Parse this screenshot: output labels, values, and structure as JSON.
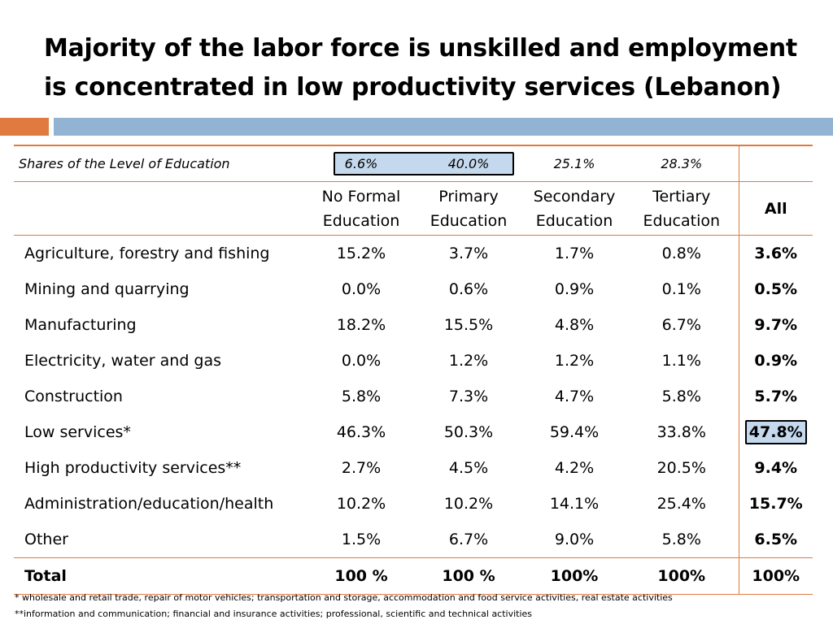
{
  "title": "Majority of the labor force is unskilled and employment is concentrated in low productivity services (Lebanon)",
  "colors": {
    "accent_orange": "#e07a40",
    "accent_blue": "#93b3d2",
    "highlight_fill": "#c5d9ee"
  },
  "shares": {
    "label": "Shares of the Level of Education",
    "values": [
      "6.6%",
      "40.0%",
      "25.1%",
      "28.3%"
    ]
  },
  "headers": {
    "no_formal": [
      "No Formal",
      "Education"
    ],
    "primary": [
      "Primary",
      "Education"
    ],
    "secondary": [
      "Secondary",
      "Education"
    ],
    "tertiary": [
      "Tertiary",
      "Education"
    ],
    "all": "All"
  },
  "rows": [
    {
      "label": "Agriculture, forestry and fishing",
      "values": [
        "15.2%",
        "3.7%",
        "1.7%",
        "0.8%"
      ],
      "all": "3.6%"
    },
    {
      "label": "Mining and quarrying",
      "values": [
        "0.0%",
        "0.6%",
        "0.9%",
        "0.1%"
      ],
      "all": "0.5%"
    },
    {
      "label": "Manufacturing",
      "values": [
        "18.2%",
        "15.5%",
        "4.8%",
        "6.7%"
      ],
      "all": "9.7%"
    },
    {
      "label": "Electricity, water and gas",
      "values": [
        "0.0%",
        "1.2%",
        "1.2%",
        "1.1%"
      ],
      "all": "0.9%"
    },
    {
      "label": "Construction",
      "values": [
        "5.8%",
        "7.3%",
        "4.7%",
        "5.8%"
      ],
      "all": "5.7%"
    },
    {
      "label": "Low services*",
      "values": [
        "46.3%",
        "50.3%",
        "59.4%",
        "33.8%"
      ],
      "all": "47.8%"
    },
    {
      "label": "High productivity services**",
      "values": [
        "2.7%",
        "4.5%",
        "4.2%",
        "20.5%"
      ],
      "all": "9.4%"
    },
    {
      "label": "Administration/education/health",
      "values": [
        "10.2%",
        "10.2%",
        "14.1%",
        "25.4%"
      ],
      "all": "15.7%"
    },
    {
      "label": "Other",
      "values": [
        "1.5%",
        "6.7%",
        "9.0%",
        "5.8%"
      ],
      "all": "6.5%"
    }
  ],
  "total": {
    "label": "Total",
    "values": [
      "100 %",
      "100 %",
      "100%",
      "100%"
    ],
    "all": "100%"
  },
  "footnotes": [
    "* wholesale and retail trade, repair of motor vehicles; transportation and storage, accommodation and food service activities, real estate activities",
    "**information and communication; financial and insurance activities; professional, scientific and technical activities"
  ]
}
